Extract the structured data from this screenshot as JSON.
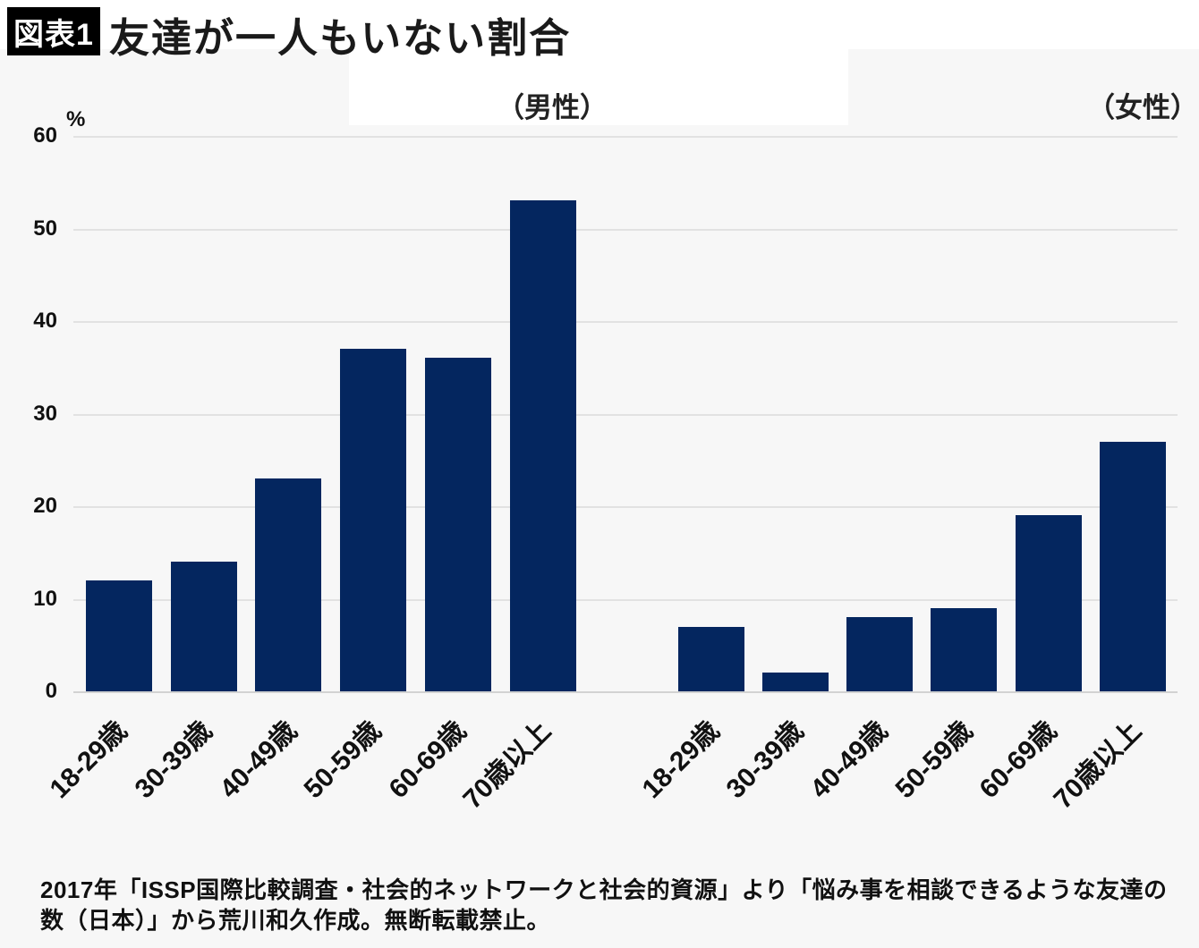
{
  "header": {
    "badge": "図表1",
    "title": "友達が一人もいない割合"
  },
  "chart_data": {
    "type": "bar",
    "title": "友達が一人もいない割合",
    "unit_label": "%",
    "ylabel": "%",
    "ylim": [
      0,
      60
    ],
    "yticks": [
      0,
      10,
      20,
      30,
      40,
      50,
      60
    ],
    "grid": true,
    "legend_position": "none",
    "categories": [
      "18-29歳",
      "30-39歳",
      "40-49歳",
      "50-59歳",
      "60-69歳",
      "70歳以上"
    ],
    "groups": [
      {
        "label": "（男性）",
        "name": "男性",
        "values": [
          12,
          14,
          23,
          37,
          36,
          53
        ]
      },
      {
        "label": "（女性）",
        "name": "女性",
        "values": [
          7,
          2,
          8,
          9,
          19,
          27
        ]
      }
    ],
    "bar_color": "#04265f",
    "background_color": "#f7f7f7",
    "gridline_color": "#e2e2e2"
  },
  "footnote": {
    "line1": "2017年「ISSP国際比較調査・社会的ネットワークと社会的資源」より「悩み事を相談できるような友達の",
    "line2": "数（日本）」から荒川和久作成。無断転載禁止。"
  }
}
